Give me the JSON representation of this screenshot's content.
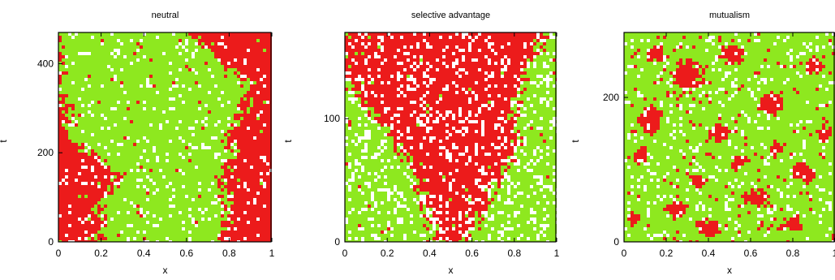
{
  "chart_data": [
    {
      "type": "heatmap",
      "title": "neutral",
      "xlabel": "x",
      "ylabel": "t",
      "xlim": [
        0,
        1
      ],
      "ylim": [
        0,
        470
      ],
      "xticks": [
        0,
        0.2,
        0.4,
        0.6,
        0.8,
        1
      ],
      "xtick_labels": [
        "0",
        "0.2",
        "0.4",
        "0.6",
        "0.8",
        "1"
      ],
      "yticks": [
        0,
        200,
        400
      ],
      "ytick_labels": [
        "0",
        "200",
        "400"
      ],
      "colors": {
        "species_a": "#ec1b1b",
        "species_b": "#8ee81f",
        "empty": "#ffffff"
      },
      "noise": {
        "amplitude": 0.045,
        "empty_fraction": 0.09
      },
      "boundary_description": "red domains on both sides; green domain in the middle",
      "boundaries": {
        "t": [
          0,
          40,
          80,
          120,
          150,
          180,
          200,
          240,
          280,
          320,
          360,
          400,
          440,
          470
        ],
        "left_red_edge": [
          0.19,
          0.21,
          0.19,
          0.24,
          0.28,
          0.21,
          0.13,
          0.04,
          0.05,
          0.02,
          0.0,
          0.0,
          0.0,
          0.0
        ],
        "right_red_edge": [
          0.76,
          0.78,
          0.8,
          0.78,
          0.76,
          0.8,
          0.82,
          0.8,
          0.84,
          0.88,
          0.9,
          0.78,
          0.68,
          0.62
        ]
      }
    },
    {
      "type": "heatmap",
      "title": "selective advantage",
      "xlabel": "x",
      "ylabel": "t",
      "xlim": [
        0,
        1
      ],
      "ylim": [
        0,
        170
      ],
      "xticks": [
        0,
        0.2,
        0.4,
        0.6,
        0.8,
        1
      ],
      "xtick_labels": [
        "0",
        "0.2",
        "0.4",
        "0.6",
        "0.8",
        "1"
      ],
      "yticks": [
        0,
        100
      ],
      "ytick_labels": [
        "0",
        "100"
      ],
      "colors": {
        "species_a": "#ec1b1b",
        "species_b": "#8ee81f",
        "empty": "#ffffff"
      },
      "noise": {
        "amplitude": 0.04,
        "empty_fraction": 0.2
      },
      "boundary_description": "red wedge expanding from the bottom center to fill the top",
      "boundaries": {
        "t": [
          0,
          10,
          20,
          40,
          60,
          80,
          100,
          120,
          140,
          160,
          170
        ],
        "red_left_edge": [
          0.45,
          0.42,
          0.4,
          0.36,
          0.32,
          0.24,
          0.15,
          0.05,
          0.0,
          0.0,
          0.0
        ],
        "red_right_edge": [
          0.55,
          0.6,
          0.64,
          0.7,
          0.77,
          0.82,
          0.8,
          0.82,
          0.86,
          0.9,
          0.95
        ]
      }
    },
    {
      "type": "heatmap",
      "title": "mutualism",
      "xlabel": "x",
      "ylabel": "t",
      "xlim": [
        0,
        1
      ],
      "ylim": [
        0,
        290
      ],
      "xticks": [
        0,
        0.2,
        0.4,
        0.6,
        0.8,
        1
      ],
      "xtick_labels": [
        "0",
        "0.2",
        "0.4",
        "0.6",
        "0.8",
        "1"
      ],
      "yticks": [
        0,
        200
      ],
      "ytick_labels": [
        "0",
        "200"
      ],
      "colors": {
        "species_a": "#ec1b1b",
        "species_b": "#8ee81f",
        "empty": "#ffffff"
      },
      "noise": {
        "empty_fraction": 0.1
      },
      "boundary_description": "green background with scattered small red patches",
      "red_patches": [
        [
          0.3,
          230,
          0.07,
          22
        ],
        [
          0.12,
          170,
          0.05,
          18
        ],
        [
          0.52,
          260,
          0.05,
          14
        ],
        [
          0.08,
          120,
          0.04,
          12
        ],
        [
          0.45,
          150,
          0.05,
          14
        ],
        [
          0.7,
          190,
          0.06,
          16
        ],
        [
          0.85,
          95,
          0.05,
          14
        ],
        [
          0.62,
          60,
          0.06,
          12
        ],
        [
          0.25,
          45,
          0.05,
          12
        ],
        [
          0.9,
          245,
          0.04,
          12
        ],
        [
          0.4,
          20,
          0.06,
          10
        ],
        [
          0.8,
          25,
          0.05,
          10
        ],
        [
          0.55,
          110,
          0.04,
          10
        ],
        [
          0.15,
          260,
          0.04,
          10
        ],
        [
          0.95,
          150,
          0.03,
          10
        ],
        [
          0.35,
          85,
          0.04,
          10
        ],
        [
          0.05,
          30,
          0.03,
          10
        ],
        [
          0.72,
          130,
          0.03,
          9
        ]
      ]
    }
  ]
}
